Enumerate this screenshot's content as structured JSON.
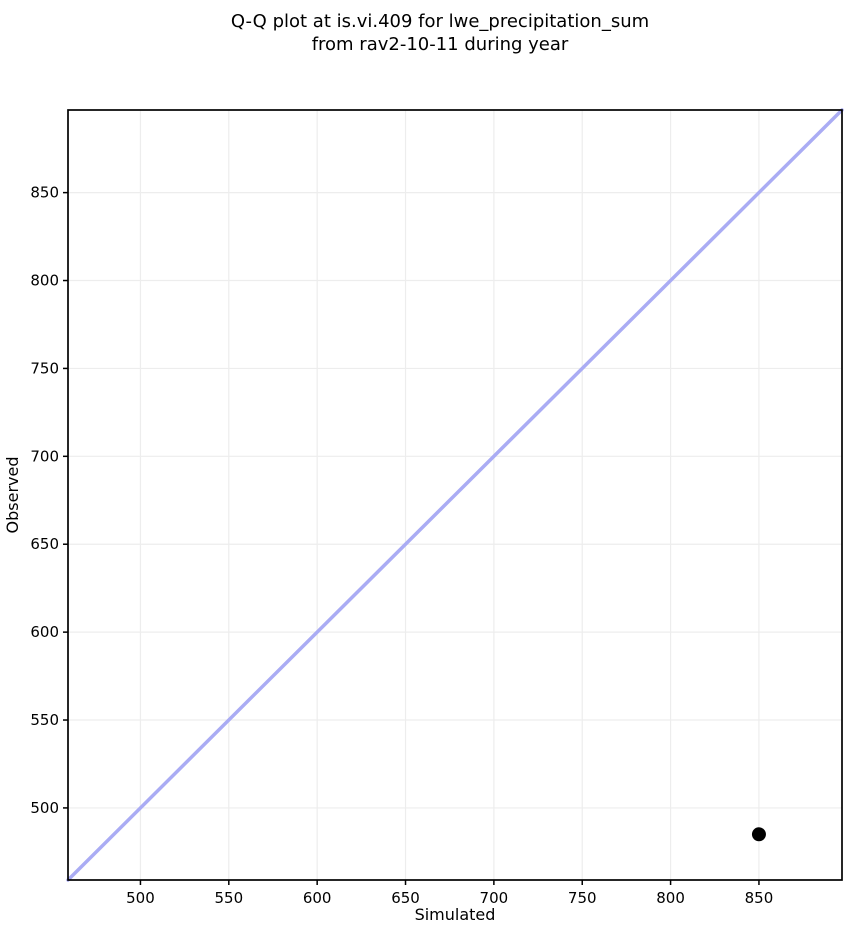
{
  "figure": {
    "kind": "qq-plot",
    "background_color": "#ffffff"
  },
  "style": {
    "grid_color": "#ededed",
    "spine_color": "#000000",
    "text_color": "#000000",
    "identity_line_color": "#aaacf4",
    "point_color": "#000000"
  },
  "chart_data": {
    "type": "scatter",
    "title": "Q-Q plot at is.vi.409 for lwe_precipitation_sum\nfrom rav2-10-11 during year",
    "title_lines": [
      "Q-Q plot at is.vi.409 for lwe_precipitation_sum",
      "from rav2-10-11 during year"
    ],
    "xlabel": "Simulated",
    "ylabel": "Observed",
    "xlim": [
      459,
      897
    ],
    "ylim": [
      459,
      897
    ],
    "xticks": [
      500,
      550,
      600,
      650,
      700,
      750,
      800,
      850
    ],
    "yticks": [
      500,
      550,
      600,
      650,
      700,
      750,
      800,
      850
    ],
    "grid": true,
    "legend": false,
    "series": [
      {
        "name": "identity-line",
        "kind": "line",
        "color": "#aaacf4",
        "stroke_width": 3.5,
        "points": [
          [
            459,
            459
          ],
          [
            897,
            897
          ]
        ]
      },
      {
        "name": "observed-vs-simulated-quantiles",
        "kind": "scatter",
        "color": "#000000",
        "marker": "circle",
        "marker_radius": 7,
        "points": [
          [
            850,
            485
          ]
        ]
      }
    ]
  }
}
